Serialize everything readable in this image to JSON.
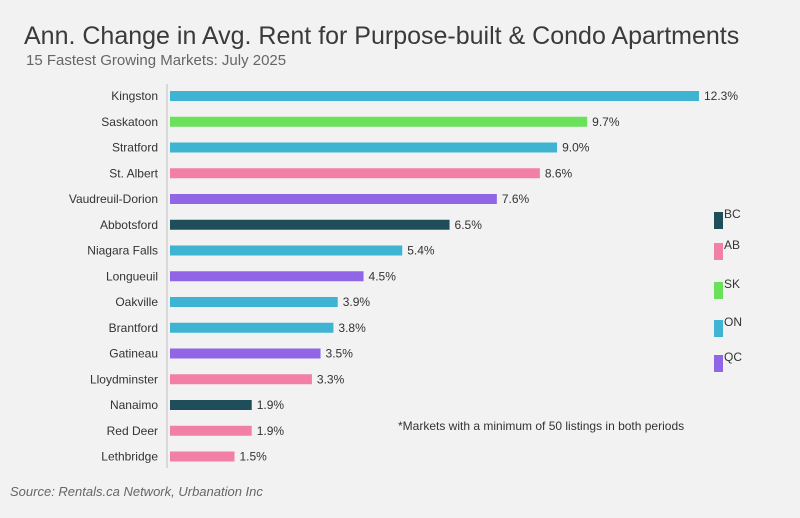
{
  "title": "Ann. Change in Avg. Rent for Purpose-built & Condo Apartments",
  "subtitle": "15 Fastest Growing Markets: July 2025",
  "source": "Source: Rentals.ca Network, Urbanation Inc",
  "note": "*Markets with a minimum of 50 listings in both periods",
  "province_colors": {
    "BC": "#1f4e5a",
    "AB": "#f27fa6",
    "SK": "#6be05a",
    "ON": "#3fb4d2",
    "QC": "#9166e6"
  },
  "legend": [
    {
      "label": "BC",
      "color": "#1f4e5a"
    },
    {
      "label": "AB",
      "color": "#f27fa6"
    },
    {
      "label": "SK",
      "color": "#6be05a"
    },
    {
      "label": "ON",
      "color": "#3fb4d2"
    },
    {
      "label": "QC",
      "color": "#9166e6"
    }
  ],
  "chart_data": {
    "type": "bar",
    "orientation": "horizontal",
    "title": "Ann. Change in Avg. Rent for Purpose-built & Condo Apartments",
    "subtitle": "15 Fastest Growing Markets: July 2025",
    "categories": [
      "Kingston",
      "Saskatoon",
      "Stratford",
      "St. Albert",
      "Vaudreuil-Dorion",
      "Abbotsford",
      "Niagara Falls",
      "Longueuil",
      "Oakville",
      "Brantford",
      "Gatineau",
      "Lloydminster",
      "Nanaimo",
      "Red Deer",
      "Lethbridge"
    ],
    "values": [
      12.3,
      9.7,
      9.0,
      8.6,
      7.6,
      6.5,
      5.4,
      4.5,
      3.9,
      3.8,
      3.5,
      3.3,
      1.9,
      1.9,
      1.5
    ],
    "value_labels": [
      "12.3%",
      "9.7%",
      "9.0%",
      "8.6%",
      "7.6%",
      "6.5%",
      "5.4%",
      "4.5%",
      "3.9%",
      "3.8%",
      "3.5%",
      "3.3%",
      "1.9%",
      "1.9%",
      "1.5%"
    ],
    "provinces": [
      "ON",
      "SK",
      "ON",
      "AB",
      "QC",
      "BC",
      "ON",
      "QC",
      "ON",
      "ON",
      "QC",
      "AB",
      "BC",
      "AB",
      "AB"
    ],
    "unit": "%",
    "xlim": [
      0,
      12.3
    ],
    "grid": false,
    "legend_position": "right"
  }
}
